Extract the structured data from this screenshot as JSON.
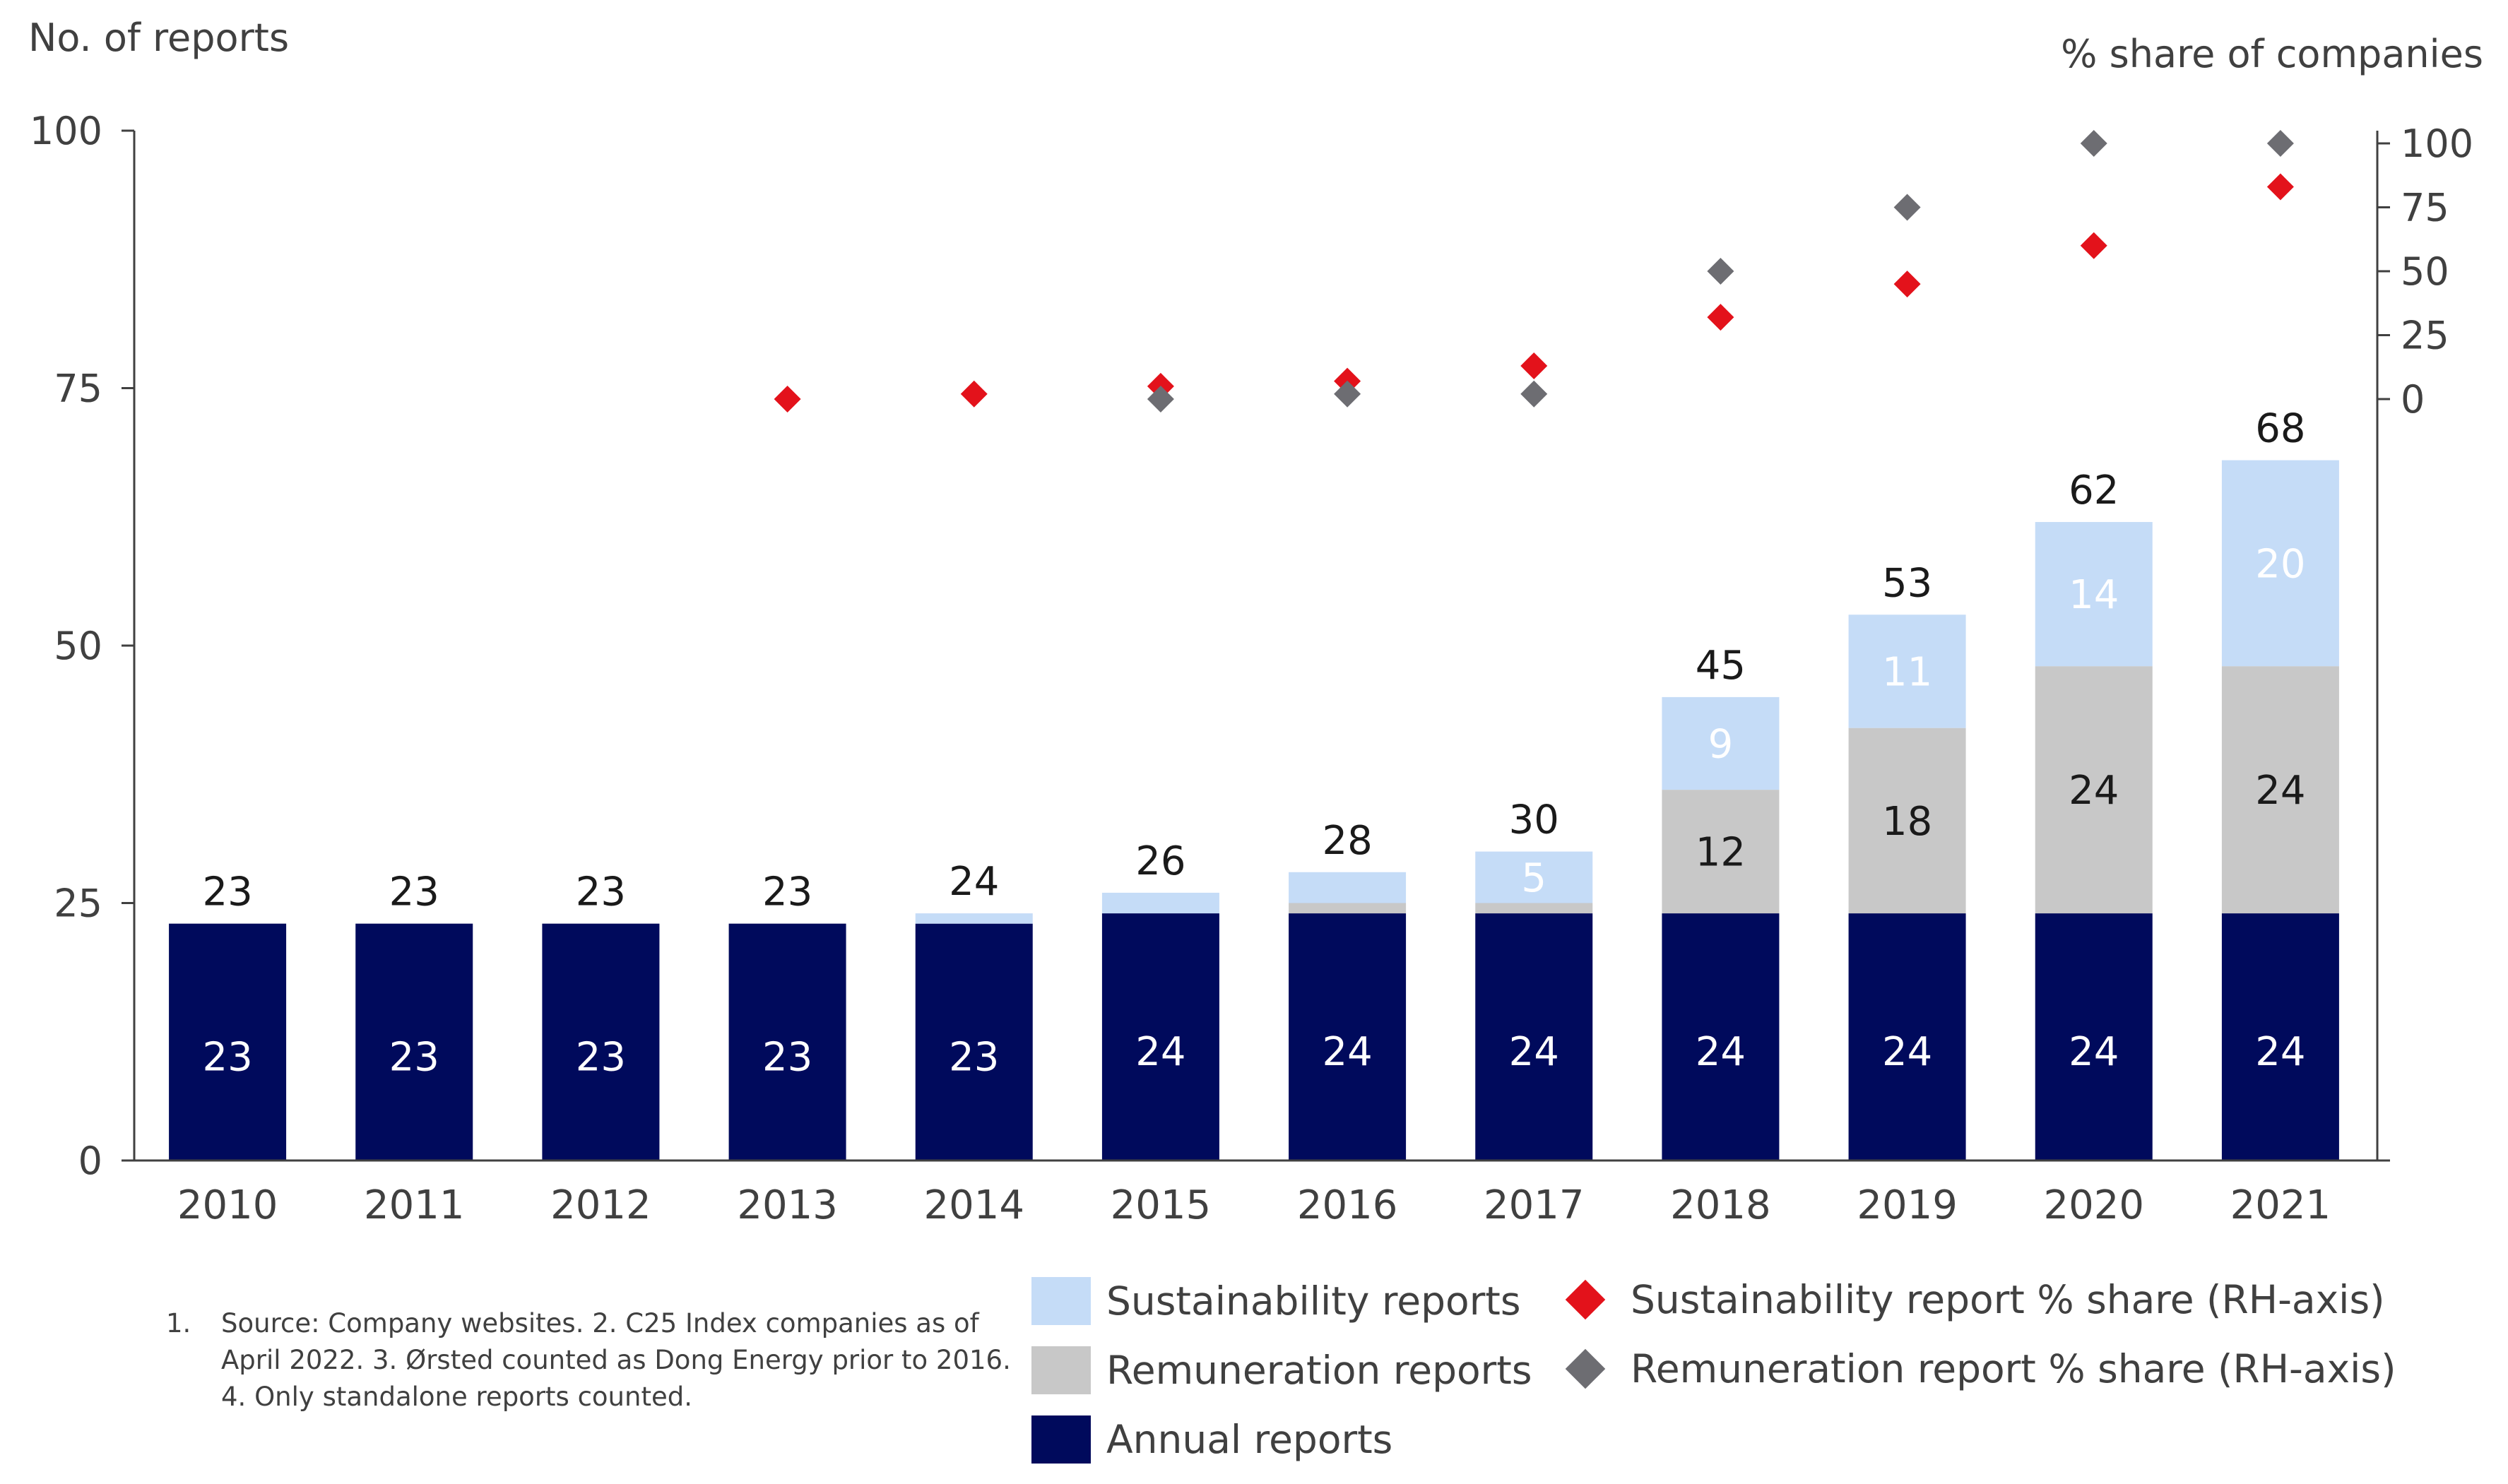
{
  "chart_data": {
    "type": "bar",
    "stacked": true,
    "categories": [
      "2010",
      "2011",
      "2012",
      "2013",
      "2014",
      "2015",
      "2016",
      "2017",
      "2018",
      "2019",
      "2020",
      "2021"
    ],
    "series": [
      {
        "name": "Annual reports",
        "values": [
          23,
          23,
          23,
          23,
          23,
          24,
          24,
          24,
          24,
          24,
          24,
          24
        ],
        "color": "#000a5c",
        "labels": [
          "23",
          "23",
          "23",
          "23",
          "23",
          "24",
          "24",
          "24",
          "24",
          "24",
          "24",
          "24"
        ]
      },
      {
        "name": "Remuneration reports",
        "values": [
          0,
          0,
          0,
          0,
          0,
          0,
          1,
          1,
          12,
          18,
          24,
          24
        ],
        "color": "#c8c8c8",
        "labels": [
          "",
          "",
          "",
          "",
          "",
          "",
          "",
          "",
          "12",
          "18",
          "24",
          "24"
        ]
      },
      {
        "name": "Sustainability reports",
        "values": [
          0,
          0,
          0,
          0,
          1,
          2,
          3,
          5,
          9,
          11,
          14,
          20
        ],
        "color": "#c5dcf7",
        "labels": [
          "",
          "",
          "",
          "",
          "",
          "",
          "",
          "5",
          "9",
          "11",
          "14",
          "20"
        ]
      }
    ],
    "totals": [
      23,
      23,
      23,
      23,
      24,
      26,
      28,
      30,
      45,
      53,
      62,
      68
    ],
    "total_labels": [
      "23",
      "23",
      "23",
      "23",
      "24",
      "26",
      "28",
      "30",
      "45",
      "53",
      "62",
      "68"
    ],
    "secondary_series": [
      {
        "name": "Sustainability report % share (RH-axis)",
        "marker": "diamond",
        "color": "#e3121b",
        "values": [
          null,
          null,
          null,
          0,
          2,
          5,
          7,
          13,
          32,
          45,
          60,
          83
        ]
      },
      {
        "name": "Remuneration report % share (RH-axis)",
        "marker": "diamond",
        "color": "#6d6d72",
        "values": [
          null,
          null,
          null,
          null,
          null,
          0,
          2,
          2,
          50,
          75,
          100,
          100
        ]
      }
    ],
    "ylabel": "No. of reports",
    "ylim": [
      0,
      100
    ],
    "yticks": [
      "0",
      "25",
      "50",
      "75",
      "100"
    ],
    "y2label": "% share of companies",
    "y2ticks": [
      "0",
      "25",
      "50",
      "75",
      "100"
    ],
    "legend": [
      {
        "label": "Sustainability reports",
        "kind": "swatch",
        "color": "#c5dcf7"
      },
      {
        "label": "Remuneration reports",
        "kind": "swatch",
        "color": "#c8c8c8"
      },
      {
        "label": "Annual reports",
        "kind": "swatch",
        "color": "#000a5c"
      },
      {
        "label": "Sustainability report % share (RH-axis)",
        "kind": "diamond",
        "color": "#e3121b"
      },
      {
        "label": "Remuneration report % share (RH-axis)",
        "kind": "diamond",
        "color": "#6d6d72"
      }
    ],
    "legend_position": "bottom-right",
    "grid": false
  },
  "footnote": {
    "number": "1.",
    "text": "Source: Company websites. 2. C25 Index companies as of April 2022. 3. Ørsted counted as Dong Energy prior to 2016. 4. Only standalone reports counted."
  }
}
